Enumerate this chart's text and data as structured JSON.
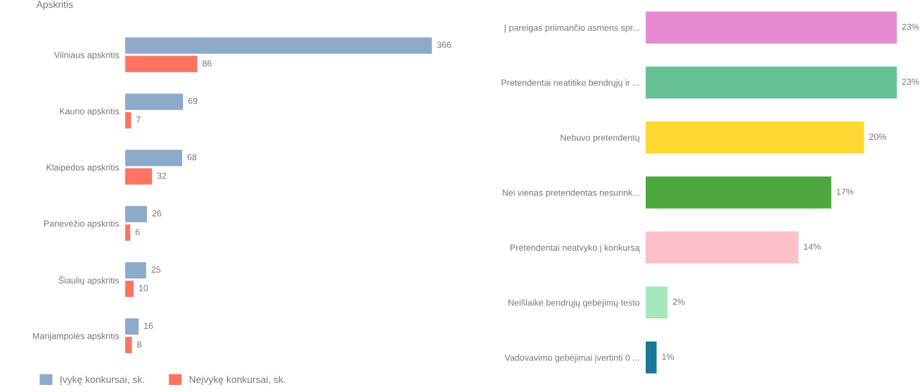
{
  "chart_data": [
    {
      "type": "bar",
      "orientation": "horizontal",
      "ylabel": "Apskritis",
      "categories": [
        "Vilniaus apskritis",
        "Kauno apskritis",
        "Klaipėdos apskritis",
        "Panevėžio apskritis",
        "Šiaulių apskritis",
        "Marijampolės apskritis"
      ],
      "series": [
        {
          "name": "Įvykę konkursai, sk.",
          "color": "#8eaacb",
          "values": [
            366,
            69,
            68,
            26,
            25,
            16
          ]
        },
        {
          "name": "Neįvykę konkursai, sk.",
          "color": "#fd7462",
          "values": [
            86,
            7,
            32,
            6,
            10,
            8
          ]
        }
      ],
      "data_labels": true,
      "legend": "bottom left",
      "grid": false
    },
    {
      "type": "bar",
      "orientation": "horizontal",
      "categories": [
        "Į pareigas priimančio asmens spr...",
        "Pretendentai neatitiko bendrųjų ir ...",
        "Nebuvo pretendentų",
        "Nei vienas pretendentas nesurink...",
        "Pretendentai neatvyko į konkursą",
        "Neišlaikė bendrųjų gebėjimų testo",
        "Vadovavimo gebėjimai įvertinti 0 ..."
      ],
      "values": [
        23,
        23,
        20,
        17,
        14,
        2,
        1
      ],
      "value_labels": [
        "23%",
        "23%",
        "20%",
        "17%",
        "14%",
        "2%",
        "1%"
      ],
      "colors": [
        "#e78ad3",
        "#66c194",
        "#fed931",
        "#4ea73e",
        "#fdbfc8",
        "#a8e6bc",
        "#1a7898"
      ],
      "grid": false
    }
  ]
}
